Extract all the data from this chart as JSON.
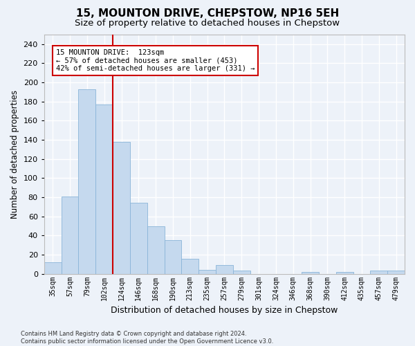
{
  "title": "15, MOUNTON DRIVE, CHEPSTOW, NP16 5EH",
  "subtitle": "Size of property relative to detached houses in Chepstow",
  "xlabel": "Distribution of detached houses by size in Chepstow",
  "ylabel": "Number of detached properties",
  "footer_line1": "Contains HM Land Registry data © Crown copyright and database right 2024.",
  "footer_line2": "Contains public sector information licensed under the Open Government Licence v3.0.",
  "bar_labels": [
    "35sqm",
    "57sqm",
    "79sqm",
    "102sqm",
    "124sqm",
    "146sqm",
    "168sqm",
    "190sqm",
    "213sqm",
    "235sqm",
    "257sqm",
    "279sqm",
    "301sqm",
    "324sqm",
    "346sqm",
    "368sqm",
    "390sqm",
    "412sqm",
    "435sqm",
    "457sqm",
    "479sqm"
  ],
  "bar_values": [
    12,
    81,
    193,
    177,
    138,
    74,
    50,
    35,
    16,
    4,
    9,
    3,
    0,
    0,
    0,
    2,
    0,
    2,
    0,
    3,
    3
  ],
  "bar_color": "#c5d9ee",
  "bar_edgecolor": "#8ab4d8",
  "background_color": "#edf2f9",
  "grid_color": "#ffffff",
  "vline_x": 3.5,
  "vline_color": "#cc0000",
  "annotation_text": "15 MOUNTON DRIVE:  123sqm\n← 57% of detached houses are smaller (453)\n42% of semi-detached houses are larger (331) →",
  "annotation_box_facecolor": "#ffffff",
  "annotation_box_edgecolor": "#cc0000",
  "ylim": [
    0,
    250
  ],
  "yticks": [
    0,
    20,
    40,
    60,
    80,
    100,
    120,
    140,
    160,
    180,
    200,
    220,
    240
  ],
  "title_fontsize": 11,
  "subtitle_fontsize": 9.5,
  "annotation_fontsize": 7.5,
  "ylabel_fontsize": 8.5,
  "xlabel_fontsize": 9,
  "xtick_fontsize": 7,
  "ytick_fontsize": 8,
  "footer_fontsize": 6
}
